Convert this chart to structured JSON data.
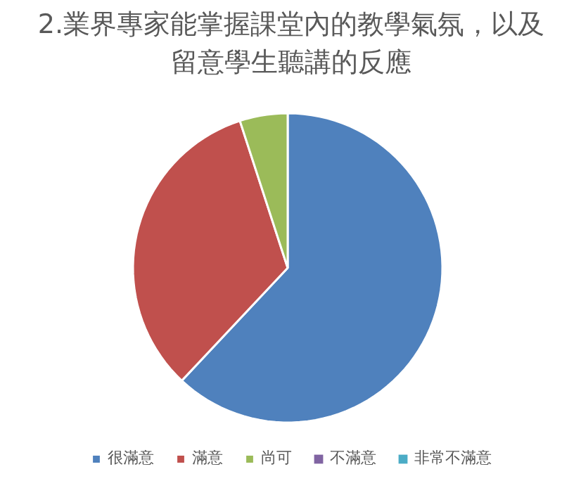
{
  "chart_data": {
    "type": "pie",
    "title": "2.業界專家能掌握課堂內的教學氣氛，以及留意學生聽講的反應",
    "categories": [
      "很滿意",
      "滿意",
      "尚可",
      "不滿意",
      "非常不滿意"
    ],
    "values": [
      62,
      33,
      5,
      0,
      0
    ],
    "colors": [
      "#4f81bd",
      "#c0504d",
      "#9bbb59",
      "#8064a2",
      "#4bacc6"
    ],
    "legend": "bottom"
  }
}
